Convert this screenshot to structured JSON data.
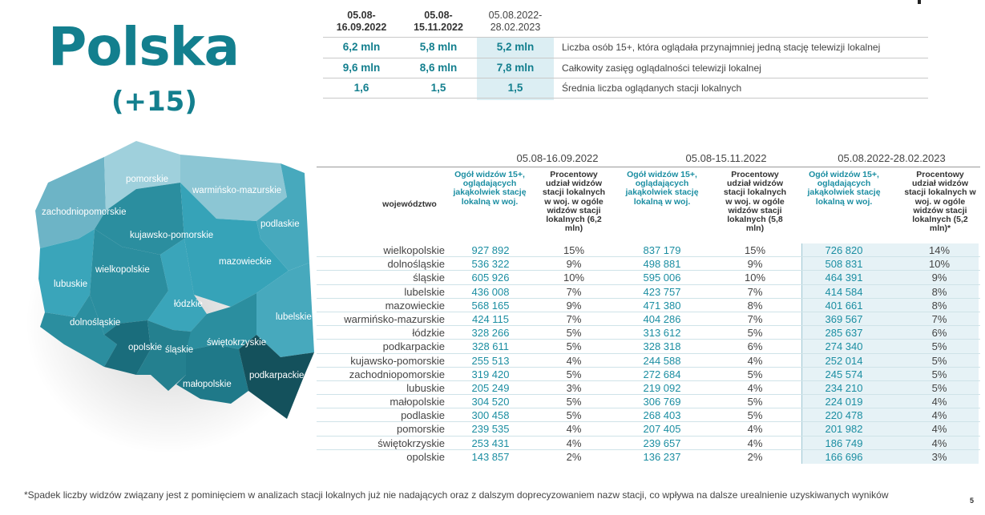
{
  "header": {
    "title": "Polska",
    "subtitle": "(+15)"
  },
  "summary": {
    "periods": [
      "05.08-\n16.09.2022",
      "05.08-\n15.11.2022",
      "05.08.2022-\n28.02.2023"
    ],
    "rows": [
      {
        "v1": "6,2 mln",
        "v2": "5,8 mln",
        "v3": "5,2 mln",
        "desc": "Liczba osób 15+, która oglądała przynajmniej jedną stację telewizji lokalnej"
      },
      {
        "v1": "9,6 mln",
        "v2": "8,6 mln",
        "v3": "7,8 mln",
        "desc": "Całkowity zasięg oglądalności telewizji lokalnej"
      },
      {
        "v1": "1,6",
        "v2": "1,5",
        "v3": "1,5",
        "desc": "Średnia liczba oglądanych stacji lokalnych"
      }
    ]
  },
  "map": {
    "labels": {
      "pomorskie": "pomorskie",
      "warminsko": "warmińsko-mazurskie",
      "zachodnio": "zachodniopomorskie",
      "podlaskie": "podlaskie",
      "kujawsko": "kujawsko-pomorskie",
      "mazowieckie": "mazowieckie",
      "wielkopolskie": "wielkopolskie",
      "lubuskie": "lubuskie",
      "lodzkie": "łódzkie",
      "lubelskie": "lubelskie",
      "dolnoslaskie": "dolnośląskie",
      "opolskie": "opolskie",
      "slaskie": "śląskie",
      "swietokrzyskie": "świętokrzyskie",
      "podkarpackie": "podkarpackie",
      "malopolskie": "małopolskie"
    }
  },
  "table": {
    "periods": [
      "05.08-16.09.2022",
      "05.08-15.11.2022",
      "05.08.2022-28.02.2023"
    ],
    "col_region": "województwo",
    "col_viewers": "Ogół widzów 15+, oglądających jakąkolwiek stację lokalną w woj.",
    "col_share_1": "Procentowy udział widzów stacji lokalnych w woj. w ogóle widzów stacji lokalnych (6,2 mln)",
    "col_share_2": "Procentowy udział widzów stacji lokalnych w woj. w ogóle widzów stacji lokalnych (5,8 mln)",
    "col_share_3": "Procentowy udział widzów stacji lokalnych w woj. w ogóle widzów stacji lokalnych (5,2 mln)*",
    "rows": [
      [
        "wielkopolskie",
        "927 892",
        "15%",
        "837 179",
        "15%",
        "726 820",
        "14%"
      ],
      [
        "dolnośląskie",
        "536 322",
        "9%",
        "498 881",
        "9%",
        "508 831",
        "10%"
      ],
      [
        "śląskie",
        "605 926",
        "10%",
        "595 006",
        "10%",
        "464 391",
        "9%"
      ],
      [
        "lubelskie",
        "436 008",
        "7%",
        "423 757",
        "7%",
        "414 584",
        "8%"
      ],
      [
        "mazowieckie",
        "568 165",
        "9%",
        "471 380",
        "8%",
        "401 661",
        "8%"
      ],
      [
        "warmińsko-mazurskie",
        "424 115",
        "7%",
        "404 286",
        "7%",
        "369 567",
        "7%"
      ],
      [
        "łódzkie",
        "328 266",
        "5%",
        "313 612",
        "5%",
        "285 637",
        "6%"
      ],
      [
        "podkarpackie",
        "328 611",
        "5%",
        "328 318",
        "6%",
        "274 340",
        "5%"
      ],
      [
        "kujawsko-pomorskie",
        "255 513",
        "4%",
        "244 588",
        "4%",
        "252 014",
        "5%"
      ],
      [
        "zachodniopomorskie",
        "319 420",
        "5%",
        "272 684",
        "5%",
        "245 574",
        "5%"
      ],
      [
        "lubuskie",
        "205 249",
        "3%",
        "219 092",
        "4%",
        "234 210",
        "5%"
      ],
      [
        "małopolskie",
        "304 520",
        "5%",
        "306 769",
        "5%",
        "224 019",
        "4%"
      ],
      [
        "podlaskie",
        "300 458",
        "5%",
        "268 403",
        "5%",
        "220 478",
        "4%"
      ],
      [
        "pomorskie",
        "239 535",
        "4%",
        "207 405",
        "4%",
        "201 982",
        "4%"
      ],
      [
        "świętokrzyskie",
        "253 431",
        "4%",
        "239 657",
        "4%",
        "186 749",
        "4%"
      ],
      [
        "opolskie",
        "143 857",
        "2%",
        "136 237",
        "2%",
        "166 696",
        "3%"
      ]
    ]
  },
  "footnote": "*Spadek liczby widzów związany jest z pominięciem w analizach stacji lokalnych już nie nadających oraz z dalszym doprecyzowaniem nazw stacji, co wpływa na dalsze urealnienie uzyskiwanych wyników",
  "page_number": "5"
}
